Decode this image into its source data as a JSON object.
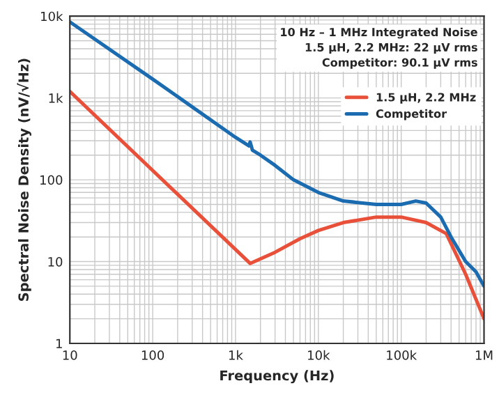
{
  "chart_data": {
    "type": "line",
    "xlabel": "Frequency (Hz)",
    "ylabel": "Spectral Noise Density (nV/√Hz)",
    "log": "xy",
    "grid": true,
    "legend": "top right",
    "xlim": [
      10,
      1000000
    ],
    "ylim": [
      1,
      10000
    ],
    "xticks": [
      {
        "value": 10,
        "label": "10"
      },
      {
        "value": 100,
        "label": "100"
      },
      {
        "value": 1000,
        "label": "1k"
      },
      {
        "value": 10000,
        "label": "10k"
      },
      {
        "value": 100000,
        "label": "100k"
      },
      {
        "value": 1000000,
        "label": "1M"
      }
    ],
    "yticks": [
      {
        "value": 1,
        "label": "1"
      },
      {
        "value": 10,
        "label": "10"
      },
      {
        "value": 100,
        "label": "100"
      },
      {
        "value": 1000,
        "label": "1k"
      },
      {
        "value": 10000,
        "label": "10k"
      }
    ],
    "annotations": [
      "10 Hz – 1 MHz Integrated Noise",
      "1.5 µH, 2.2 MHz: 22 µV rms",
      "Competitor: 90.1 µV rms"
    ],
    "series": [
      {
        "name": "1.5 µH, 2.2 MHz",
        "color": "#e8503a",
        "x": [
          10,
          1500,
          3000,
          6000,
          10000,
          20000,
          50000,
          100000,
          200000,
          350000,
          600000,
          1000000
        ],
        "values": [
          1200,
          9.5,
          13,
          19,
          24,
          30,
          35,
          35,
          30,
          22,
          7,
          2
        ]
      },
      {
        "name": "Competitor",
        "color": "#1a6bb0",
        "x": [
          10,
          100,
          1000,
          1450,
          1500,
          1600,
          2000,
          3000,
          5000,
          10000,
          20000,
          50000,
          100000,
          150000,
          200000,
          300000,
          400000,
          600000,
          800000,
          1000000
        ],
        "values": [
          8500,
          1700,
          330,
          260,
          290,
          230,
          200,
          150,
          100,
          70,
          55,
          50,
          50,
          55,
          52,
          35,
          20,
          10,
          7.5,
          5
        ]
      }
    ]
  }
}
